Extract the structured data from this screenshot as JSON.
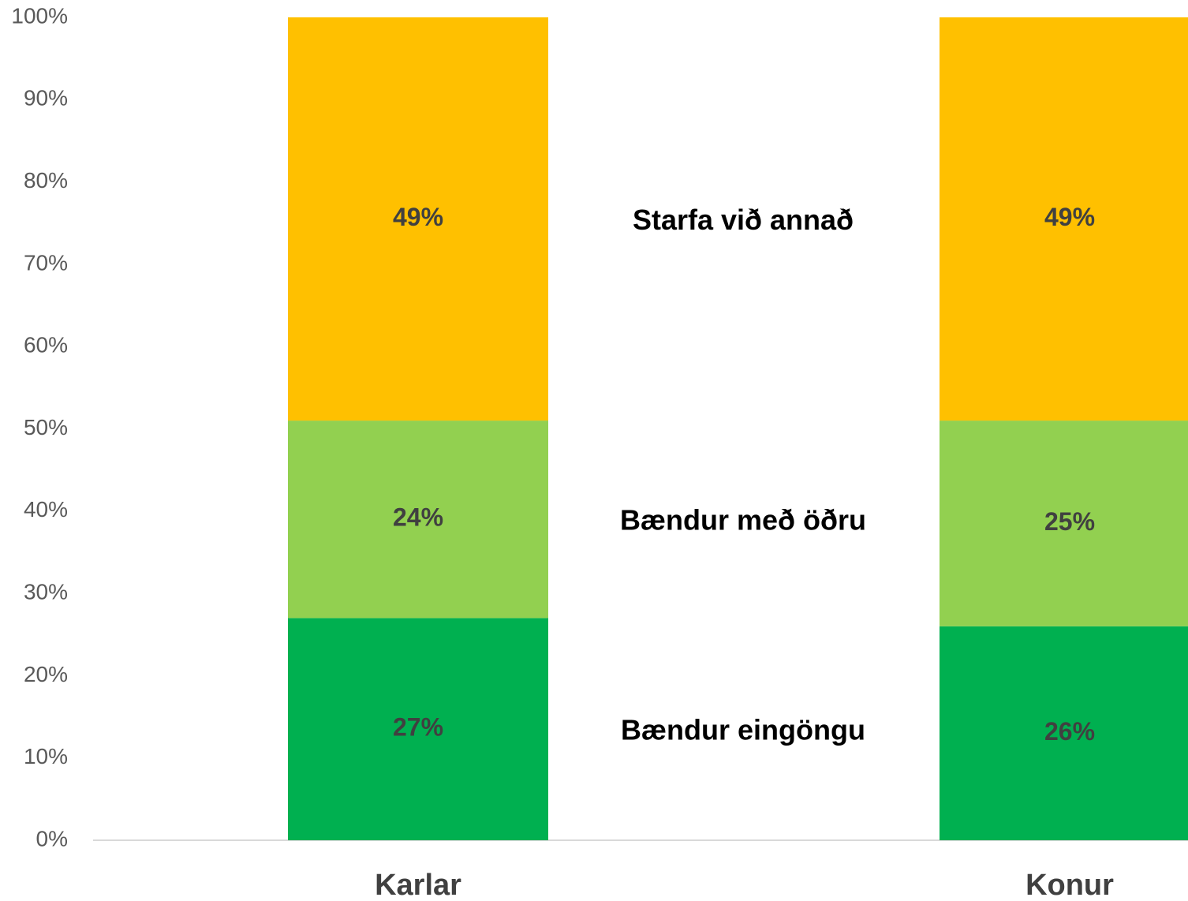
{
  "chart_data": {
    "type": "stacked_bar",
    "categories": [
      "Karlar",
      "Konur"
    ],
    "series": [
      {
        "name": "Bændur eingöngu",
        "color": "#00b050",
        "values": [
          27,
          26
        ],
        "value_labels": [
          "27%",
          "26%"
        ]
      },
      {
        "name": "Bændur með öðru",
        "color": "#92d050",
        "values": [
          24,
          25
        ],
        "value_labels": [
          "24%",
          "25%"
        ]
      },
      {
        "name": "Starfa við annað",
        "color": "#ffc000",
        "values": [
          49,
          49
        ],
        "value_labels": [
          "49%",
          "49%"
        ]
      }
    ],
    "ylim": [
      0,
      100
    ],
    "yticks": [
      {
        "value": 0,
        "label": "0%"
      },
      {
        "value": 10,
        "label": "10%"
      },
      {
        "value": 20,
        "label": "20%"
      },
      {
        "value": 30,
        "label": "30%"
      },
      {
        "value": 40,
        "label": "40%"
      },
      {
        "value": 50,
        "label": "50%"
      },
      {
        "value": 60,
        "label": "60%"
      },
      {
        "value": 70,
        "label": "70%"
      },
      {
        "value": 80,
        "label": "80%"
      },
      {
        "value": 90,
        "label": "90%"
      },
      {
        "value": 100,
        "label": "100%"
      }
    ],
    "grid": false
  }
}
